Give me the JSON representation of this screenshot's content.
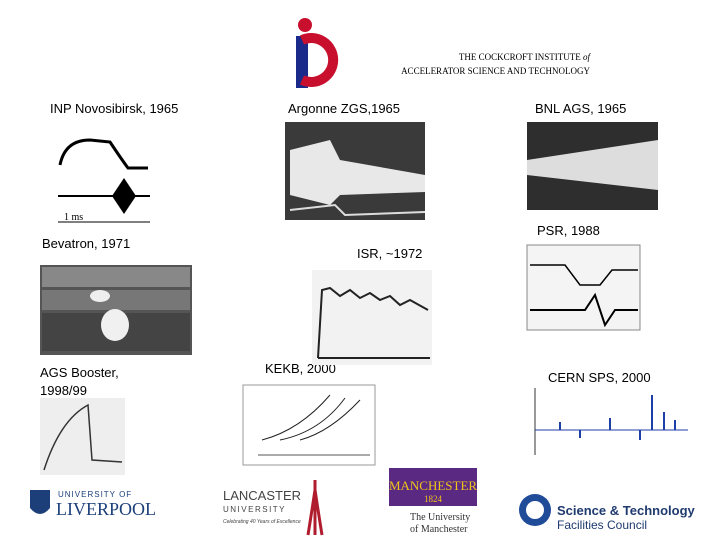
{
  "header": {
    "line1": "THE COCKCROFT INSTITUTE",
    "line1_italic": "of",
    "line2": "ACCELERATOR SCIENCE AND TECHNOLOGY"
  },
  "panels": [
    {
      "label": "INP Novosibirsk, 1965",
      "inset": "1 ms"
    },
    {
      "label": "Argonne ZGS,1965"
    },
    {
      "label": "BNL AGS, 1965"
    },
    {
      "label": "PSR, 1988"
    },
    {
      "label": "Bevatron, 1971"
    },
    {
      "label": "ISR, ~1972"
    },
    {
      "label": "AGS Booster,",
      "label2": "1998/99"
    },
    {
      "label": "KEKB, 2000"
    },
    {
      "label": "CERN SPS, 2000"
    }
  ],
  "logos": {
    "liverpool": [
      "UNIVERSITY OF",
      "LIVERPOOL"
    ],
    "lancaster": [
      "LANCASTER",
      "UNIVERSITY",
      "Celebrating 40 Years of Excellence"
    ],
    "manchester": [
      "MANCHESTER",
      "1824",
      "The University",
      "of Manchester"
    ],
    "stfc": [
      "Science & Technology",
      "Facilities Council"
    ]
  }
}
